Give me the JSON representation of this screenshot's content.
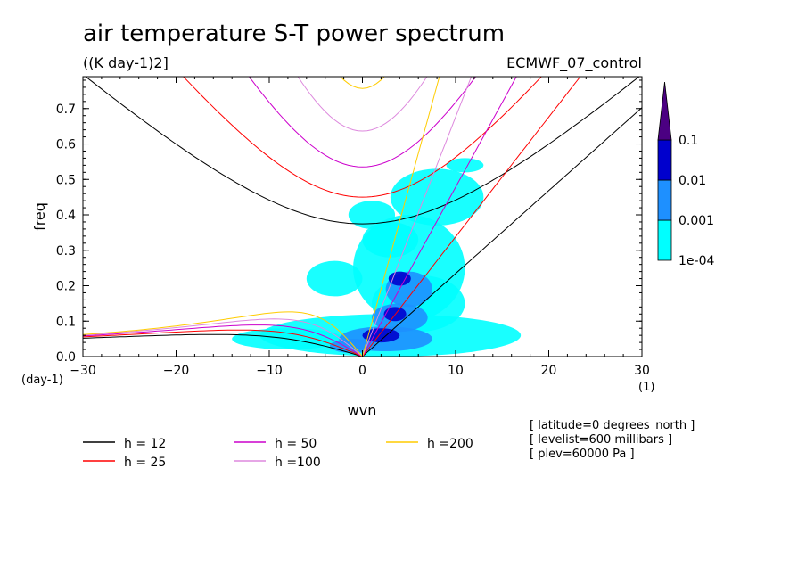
{
  "chart_data": {
    "type": "heatmap",
    "title": "air temperature S-T power spectrum",
    "units": "((K day-1)2]",
    "dataset": "ECMWF_07_control",
    "xlabel": "wvn",
    "ylabel": "freq",
    "x_unit": "(1)",
    "y_unit": "(day-1)",
    "xlim": [
      -30,
      30
    ],
    "ylim": [
      0,
      0.79
    ],
    "x_ticks": [
      "−30",
      "−20",
      "−10",
      "0",
      "10",
      "20",
      "30"
    ],
    "y_ticks": [
      "0.0",
      "0.1",
      "0.2",
      "0.3",
      "0.4",
      "0.5",
      "0.6",
      "0.7"
    ],
    "x_tick_values": [
      -30,
      -20,
      -10,
      0,
      10,
      20,
      30
    ],
    "y_tick_values": [
      0.0,
      0.1,
      0.2,
      0.3,
      0.4,
      0.5,
      0.6,
      0.7
    ],
    "colorbar": {
      "levels": [
        "1e-04",
        "0.001",
        "0.01",
        "0.1"
      ],
      "colors": [
        "#00ffff",
        "#1e90ff",
        "#0000cd",
        "#4b0082"
      ]
    },
    "dispersion_curves": [
      {
        "h": 12,
        "color": "#000000"
      },
      {
        "h": 25,
        "color": "#ff0000"
      },
      {
        "h": 50,
        "color": "#cc00cc"
      },
      {
        "h": 100,
        "color": "#dd88dd"
      },
      {
        "h": 200,
        "color": "#ffcc00"
      }
    ],
    "legend": [
      {
        "label": "h = 12",
        "color": "#000000"
      },
      {
        "label": "h = 25",
        "color": "#ff0000"
      },
      {
        "label": "h = 50",
        "color": "#cc00cc"
      },
      {
        "label": "h =100",
        "color": "#dd88dd"
      },
      {
        "label": "h =200",
        "color": "#ffcc00"
      }
    ],
    "notes": [
      "[ latitude=0 degrees_north ]",
      "[ levelist=600 millibars ]",
      "[ plev=60000 Pa ]"
    ],
    "spectral_blobs": [
      {
        "level": 1,
        "x": 3,
        "y": 0.06,
        "rx": 14,
        "ry": 0.06
      },
      {
        "level": 1,
        "x": 5,
        "y": 0.25,
        "rx": 6,
        "ry": 0.15
      },
      {
        "level": 1,
        "x": 8,
        "y": 0.45,
        "rx": 5,
        "ry": 0.08
      },
      {
        "level": 1,
        "x": 11,
        "y": 0.54,
        "rx": 2,
        "ry": 0.02
      },
      {
        "level": 1,
        "x": -8,
        "y": 0.05,
        "rx": 6,
        "ry": 0.03
      },
      {
        "level": 1,
        "x": -3,
        "y": 0.22,
        "rx": 3,
        "ry": 0.05
      },
      {
        "level": 1,
        "x": 3,
        "y": 0.33,
        "rx": 3,
        "ry": 0.05
      },
      {
        "level": 1,
        "x": 6,
        "y": 0.15,
        "rx": 5,
        "ry": 0.08
      },
      {
        "level": 1,
        "x": 1,
        "y": 0.4,
        "rx": 2.5,
        "ry": 0.04
      },
      {
        "level": 2,
        "x": 2.5,
        "y": 0.05,
        "rx": 5,
        "ry": 0.035
      },
      {
        "level": 2,
        "x": 5,
        "y": 0.19,
        "rx": 2.5,
        "ry": 0.05
      },
      {
        "level": 2,
        "x": 4,
        "y": 0.11,
        "rx": 3,
        "ry": 0.04
      },
      {
        "level": 2,
        "x": -1,
        "y": 0.03,
        "rx": 2.5,
        "ry": 0.02
      },
      {
        "level": 3,
        "x": 2,
        "y": 0.06,
        "rx": 2,
        "ry": 0.02
      },
      {
        "level": 3,
        "x": 4,
        "y": 0.22,
        "rx": 1.2,
        "ry": 0.02
      },
      {
        "level": 3,
        "x": 3.5,
        "y": 0.12,
        "rx": 1.2,
        "ry": 0.02
      }
    ]
  }
}
